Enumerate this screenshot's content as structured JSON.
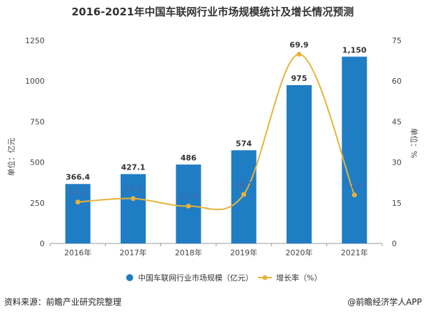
{
  "chart_data": {
    "type": "bar",
    "title": "2016-2021年中国车联网行业市场规模统计及增长情况预测",
    "categories": [
      "2016年",
      "2017年",
      "2018年",
      "2019年",
      "2020年",
      "2021年"
    ],
    "series": [
      {
        "name": "中国车联网行业市场规模（亿元）",
        "type": "bar",
        "axis": "left",
        "values": [
          366.4,
          427.1,
          486,
          574,
          975,
          1150
        ],
        "labels": [
          "366.4",
          "427.1",
          "486",
          "574",
          "975",
          "1,150"
        ],
        "color": "#1f7dc4"
      },
      {
        "name": "增长率（%）",
        "type": "line",
        "axis": "right",
        "values": [
          15.3,
          16.6,
          13.8,
          18.1,
          69.9,
          17.9
        ],
        "labels": [
          "15.3",
          "16.6",
          "13.8",
          "18.1",
          "69.9",
          "17.9"
        ],
        "color": "#e8b23a"
      }
    ],
    "ylabel": "单位：亿元",
    "ylim": [
      0,
      1250
    ],
    "yticks": [
      0,
      250,
      500,
      750,
      1000,
      1250
    ],
    "y2label": "单位：%",
    "y2lim": [
      0,
      75
    ],
    "y2ticks": [
      0,
      15,
      30,
      45,
      60,
      75
    ],
    "legend_position": "bottom",
    "grid": false
  },
  "footer": {
    "source": "资料来源：前瞻产业研究院整理",
    "credit": "@前瞻经济学人APP"
  }
}
